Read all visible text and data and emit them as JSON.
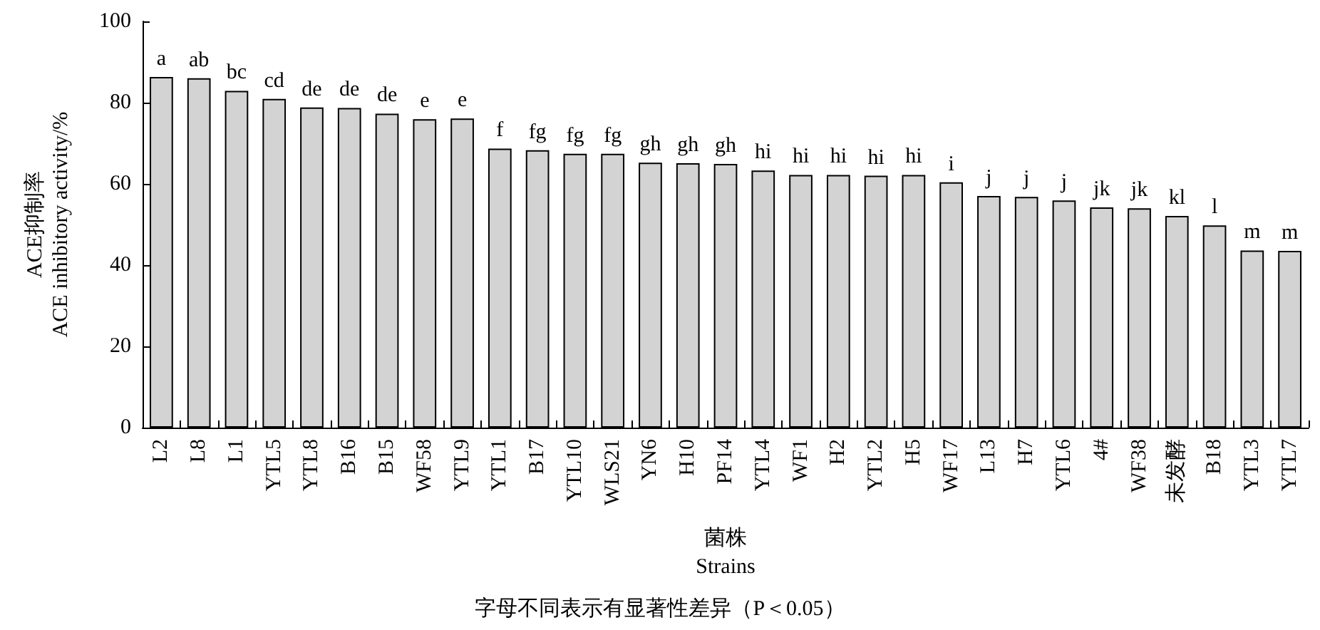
{
  "chart_data": {
    "type": "bar",
    "xlabel": "菌株\nStrains",
    "ylabel": "ACE抑制率\nACE inhibitory activity/%",
    "categories": [
      "L2",
      "L8",
      "L1",
      "YTL5",
      "YTL8",
      "B16",
      "B15",
      "WF58",
      "YTL9",
      "YTL1",
      "B17",
      "YTL10",
      "WLS21",
      "YN6",
      "H10",
      "PF14",
      "YTL4",
      "WF1",
      "H2",
      "YTL2",
      "H5",
      "WF17",
      "L13",
      "H7",
      "YTL6",
      "4#",
      "WF38",
      "未发酵",
      "B18",
      "YTL3",
      "YTL7"
    ],
    "values": [
      86.3,
      86.0,
      82.9,
      80.9,
      78.8,
      78.7,
      77.3,
      75.9,
      76.1,
      68.7,
      68.3,
      67.4,
      67.4,
      65.2,
      65.1,
      64.9,
      63.3,
      62.2,
      62.2,
      62.0,
      62.2,
      60.4,
      57.0,
      56.8,
      55.9,
      54.2,
      54.0,
      52.1,
      49.8,
      43.6,
      43.5
    ],
    "value_labels": [
      "a",
      "ab",
      "bc",
      "cd",
      "de",
      "de",
      "de",
      "e",
      "e",
      "f",
      "fg",
      "fg",
      "fg",
      "gh",
      "gh",
      "gh",
      "hi",
      "hi",
      "hi",
      "hi",
      "hi",
      "i",
      "j",
      "j",
      "j",
      "jk",
      "jk",
      "kl",
      "l",
      "m",
      "m"
    ],
    "color": "#d3d3d3",
    "ylim": [
      0,
      100
    ],
    "yticks": [
      0,
      20,
      40,
      60,
      80,
      100
    ],
    "grid": false,
    "annotations": [
      "字母不同表示有显著性差异（P＜0.05）"
    ]
  }
}
